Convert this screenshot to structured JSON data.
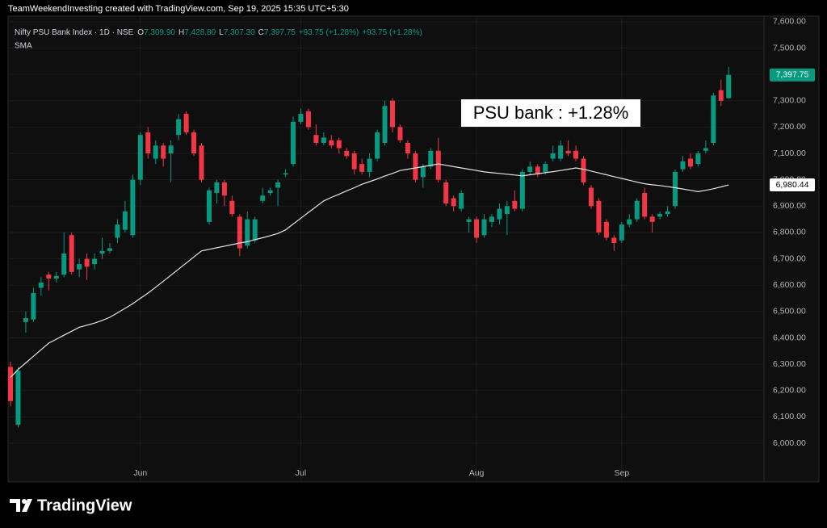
{
  "chart_data": {
    "type": "candlestick",
    "header_text": "TeamWeekendInvesting created with TradingView.com, Sep 19, 2025 15:35 UTC+5:30",
    "symbol": "Nifty PSU Bank Index · 1D · NSE",
    "legend_values": [
      {
        "key": "O",
        "value": "7,309.90"
      },
      {
        "key": "H",
        "value": "7,428.80"
      },
      {
        "key": "L",
        "value": "7,307.30"
      },
      {
        "key": "C",
        "value": "7,397.75"
      }
    ],
    "change_texts": [
      "+93.75 (+1.28%)",
      "+93.75 (+1.28%)"
    ],
    "annotation": "PSU bank : +1.28%",
    "logo": "TradingView",
    "last_price_label": "7,397.75",
    "sma_last_label": "6,980.44",
    "up_color": "#089981",
    "down_color": "#f23645",
    "grid": true,
    "categories": [
      null,
      null,
      null,
      null,
      null,
      null,
      null,
      null,
      null,
      null,
      null,
      null,
      null,
      null,
      null,
      null,
      null,
      "Jun",
      null,
      null,
      null,
      null,
      null,
      null,
      null,
      null,
      null,
      null,
      null,
      null,
      null,
      null,
      null,
      null,
      null,
      null,
      null,
      null,
      "Jul",
      null,
      null,
      null,
      null,
      null,
      null,
      null,
      null,
      null,
      null,
      null,
      null,
      null,
      null,
      null,
      null,
      null,
      null,
      null,
      null,
      null,
      null,
      "Aug",
      null,
      null,
      null,
      null,
      null,
      null,
      null,
      null,
      null,
      null,
      null,
      null,
      null,
      null,
      null,
      null,
      null,
      null,
      "Sep",
      null,
      null,
      null,
      null,
      null,
      null,
      null,
      null,
      null,
      null,
      null,
      null,
      null,
      null
    ],
    "open": [
      6290,
      6070,
      6460,
      6470,
      6590,
      6640,
      6625,
      6640,
      6790,
      6660,
      6700,
      6680,
      6720,
      6730,
      6780,
      6810,
      6790,
      7000,
      7180,
      7080,
      7130,
      7100,
      7170,
      7250,
      7180,
      7130,
      6840,
      6950,
      6990,
      6920,
      6860,
      6750,
      6770,
      6920,
      6950,
      6970,
      7020,
      7060,
      7220,
      7260,
      7170,
      7140,
      7150,
      7150,
      7110,
      7100,
      7060,
      7030,
      7080,
      7140,
      7300,
      7200,
      7140,
      7100,
      7010,
      7050,
      7110,
      6990,
      6930,
      6890,
      6840,
      6850,
      6790,
      6840,
      6850,
      6870,
      6920,
      6890,
      7030,
      7050,
      7030,
      7080,
      7080,
      7110,
      7110,
      7080,
      6970,
      6920,
      6840,
      6780,
      6770,
      6830,
      6850,
      6950,
      6860,
      6860,
      6870,
      6900,
      7040,
      7080,
      7060,
      7110,
      7140,
      7340,
      7309.9
    ],
    "high": [
      6310,
      6290,
      6500,
      6590,
      6630,
      6650,
      6650,
      6800,
      6800,
      6700,
      6720,
      6720,
      6780,
      6760,
      6850,
      6920,
      7020,
      7180,
      7200,
      7150,
      7140,
      7150,
      7250,
      7260,
      7190,
      7140,
      6970,
      7000,
      7000,
      6940,
      6870,
      6880,
      6860,
      6970,
      6970,
      7000,
      7040,
      7240,
      7270,
      7270,
      7210,
      7180,
      7170,
      7160,
      7120,
      7110,
      7080,
      7100,
      7190,
      7300,
      7310,
      7210,
      7150,
      7110,
      7060,
      7120,
      7160,
      7000,
      6940,
      6960,
      6860,
      6860,
      6870,
      6870,
      6910,
      6920,
      6960,
      7040,
      7070,
      7060,
      7070,
      7130,
      7150,
      7150,
      7130,
      7090,
      6980,
      6930,
      6850,
      6790,
      6840,
      6870,
      6930,
      6970,
      6870,
      6880,
      6900,
      7040,
      7090,
      7100,
      7110,
      7150,
      7330,
      7380,
      7428.8
    ],
    "low": [
      6140,
      6060,
      6420,
      6460,
      6560,
      6580,
      6610,
      6630,
      6640,
      6630,
      6620,
      6660,
      6700,
      6720,
      6760,
      6800,
      6780,
      6980,
      7080,
      7060,
      7050,
      6990,
      7150,
      7170,
      7090,
      6990,
      6830,
      6910,
      6900,
      6860,
      6710,
      6740,
      6760,
      6910,
      6940,
      6900,
      7010,
      7050,
      7210,
      7190,
      7130,
      7130,
      7120,
      7100,
      7080,
      7020,
      7020,
      7010,
      7070,
      7130,
      7180,
      7140,
      7080,
      6990,
      6970,
      7040,
      6990,
      6900,
      6880,
      6880,
      6800,
      6760,
      6780,
      6820,
      6830,
      6790,
      6880,
      6880,
      7020,
      7010,
      7020,
      7070,
      7070,
      7090,
      7070,
      6980,
      6890,
      6790,
      6770,
      6730,
      6760,
      6820,
      6840,
      6850,
      6800,
      6850,
      6860,
      6890,
      7030,
      7040,
      7050,
      7100,
      7130,
      7280,
      7307.3
    ],
    "close": [
      6160,
      6275,
      6475,
      6570,
      6610,
      6625,
      6635,
      6720,
      6650,
      6680,
      6670,
      6700,
      6730,
      6740,
      6830,
      6880,
      7000,
      7170,
      7100,
      7130,
      7080,
      7130,
      7230,
      7180,
      7100,
      7000,
      6960,
      6990,
      6940,
      6870,
      6740,
      6850,
      6850,
      6940,
      6960,
      6990,
      7025,
      7220,
      7250,
      7200,
      7140,
      7160,
      7130,
      7120,
      7090,
      7040,
      7030,
      7080,
      7180,
      7280,
      7200,
      7150,
      7100,
      7000,
      7050,
      7110,
      7000,
      6910,
      6900,
      6950,
      6850,
      6780,
      6850,
      6860,
      6890,
      6900,
      6890,
      7030,
      7050,
      7020,
      7060,
      7100,
      7130,
      7100,
      7080,
      6990,
      6900,
      6800,
      6780,
      6760,
      6830,
      6850,
      6920,
      6860,
      6840,
      6870,
      6880,
      7030,
      7070,
      7050,
      7100,
      7120,
      7320,
      7300,
      7397.75
    ],
    "sma": {
      "name": "SMA",
      "color": "#e6e6e6",
      "values": [
        6250,
        6280,
        6305,
        6330,
        6355,
        6380,
        6395,
        6410,
        6425,
        6440,
        6448,
        6456,
        6466,
        6478,
        6495,
        6512,
        6530,
        6550,
        6570,
        6592,
        6615,
        6638,
        6661,
        6684,
        6707,
        6730,
        6736,
        6742,
        6748,
        6754,
        6760,
        6765,
        6773,
        6780,
        6788,
        6796,
        6810,
        6832,
        6854,
        6876,
        6898,
        6920,
        6933,
        6945,
        6958,
        6970,
        6983,
        6993,
        7003,
        7014,
        7024,
        7035,
        7040,
        7045,
        7050,
        7055,
        7060,
        7055,
        7050,
        7045,
        7040,
        7035,
        7030,
        7027,
        7024,
        7021,
        7018,
        7015,
        7019,
        7023,
        7027,
        7031,
        7035,
        7040,
        7045,
        7040,
        7033,
        7026,
        7019,
        7012,
        7005,
        6998,
        6991,
        6985,
        6981,
        6978,
        6974,
        6970,
        6965,
        6960,
        6955,
        6960,
        6966,
        6973,
        6980.44
      ]
    },
    "ylim": [
      5853,
      7621
    ],
    "yticks": [
      {
        "value": 6000,
        "label": "6,000.00"
      },
      {
        "value": 6100,
        "label": "6,100.00"
      },
      {
        "value": 6200,
        "label": "6,200.00"
      },
      {
        "value": 6300,
        "label": "6,300.00"
      },
      {
        "value": 6400,
        "label": "6,400.00"
      },
      {
        "value": 6500,
        "label": "6,500.00"
      },
      {
        "value": 6600,
        "label": "6,600.00"
      },
      {
        "value": 6700,
        "label": "6,700.00"
      },
      {
        "value": 6800,
        "label": "6,800.00"
      },
      {
        "value": 6900,
        "label": "6,900.00"
      },
      {
        "value": 7000,
        "label": "7,000.00"
      },
      {
        "value": 7100,
        "label": "7,100.00"
      },
      {
        "value": 7200,
        "label": "7,200.00"
      },
      {
        "value": 7300,
        "label": "7,300.00"
      },
      {
        "value": 7400,
        "label": "7,400.00"
      },
      {
        "value": 7500,
        "label": "7,500.00"
      },
      {
        "value": 7600,
        "label": "7,600.00"
      }
    ]
  }
}
